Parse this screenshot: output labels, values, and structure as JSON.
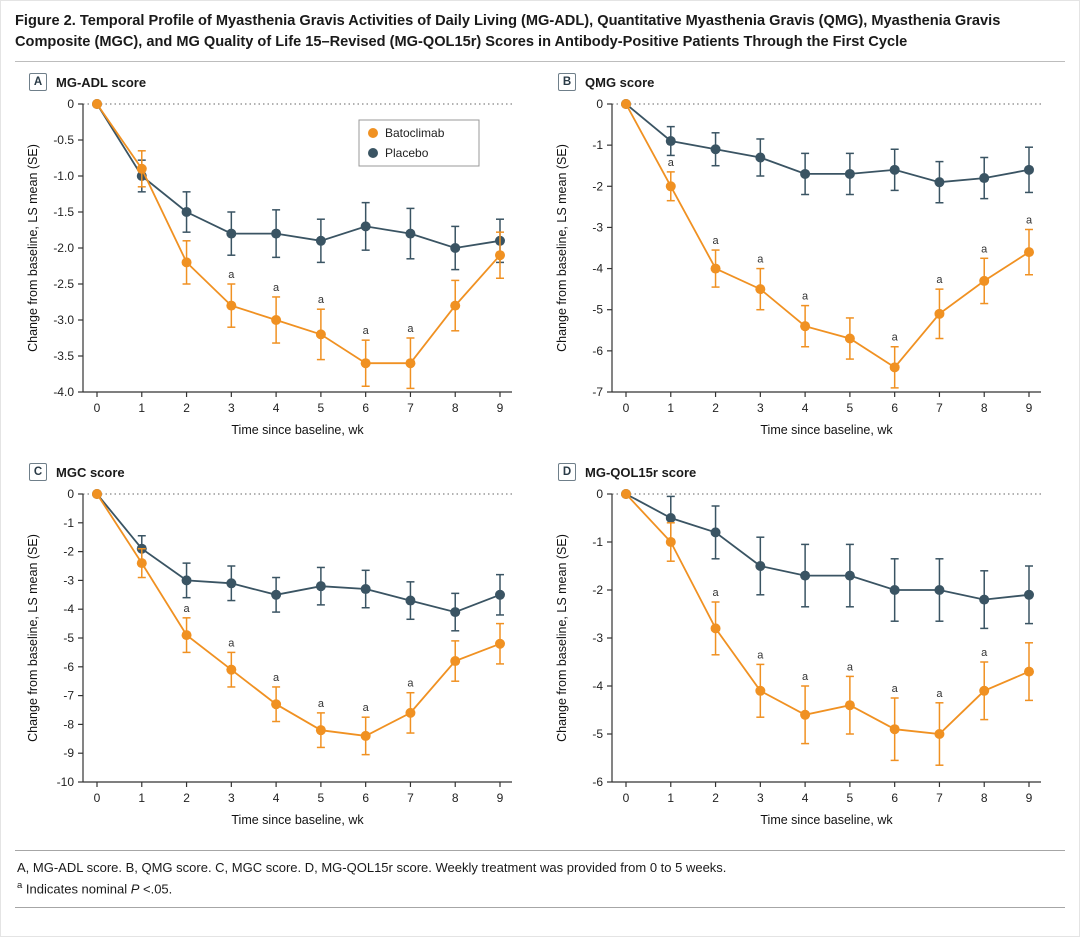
{
  "figure": {
    "title": "Figure 2. Temporal Profile of Myasthenia Gravis Activities of Daily Living (MG-ADL), Quantitative Myasthenia Gravis (QMG), Myasthenia Gravis Composite (MGC), and MG Quality of Life 15–Revised (MG-QOL15r) Scores in Antibody-Positive Patients Through the First Cycle",
    "footnote_main": "A, MG-ADL score. B, QMG score. C, MGC score. D, MG-QOL15r score. Weekly treatment was provided from 0 to 5 weeks.",
    "footnote_marker": "a",
    "footnote_sig_pre": " Indicates nominal ",
    "footnote_sig_italic": "P",
    "footnote_sig_post": " <.05."
  },
  "colors": {
    "batoclimab": "#F09122",
    "placebo": "#3A5463",
    "axis": "#333333",
    "zero_line": "#666666"
  },
  "chart_data": [
    {
      "type": "line",
      "panel_label": "A",
      "panel_title": "MG-ADL score",
      "xlabel": "Time since baseline, wk",
      "ylabel": "Change from baseline, LS mean (SE)",
      "x": [
        0,
        1,
        2,
        3,
        4,
        5,
        6,
        7,
        8,
        9
      ],
      "ylim": [
        -4.0,
        0
      ],
      "ytick_step": 0.5,
      "ytick_decimals": 1,
      "zero_line_dotted": true,
      "legend": true,
      "sig_marker": "a",
      "series": [
        {
          "name": "Batoclimab",
          "color": "#F09122",
          "values": [
            0,
            -0.9,
            -2.2,
            -2.8,
            -3.0,
            -3.2,
            -3.6,
            -3.6,
            -2.8,
            -2.1
          ],
          "se": [
            0,
            0.25,
            0.3,
            0.3,
            0.32,
            0.35,
            0.32,
            0.35,
            0.35,
            0.32
          ],
          "sig_x": [
            3,
            4,
            5,
            6,
            7
          ]
        },
        {
          "name": "Placebo",
          "color": "#3A5463",
          "values": [
            0,
            -1.0,
            -1.5,
            -1.8,
            -1.8,
            -1.9,
            -1.7,
            -1.8,
            -2.0,
            -1.9
          ],
          "se": [
            0,
            0.22,
            0.28,
            0.3,
            0.33,
            0.3,
            0.33,
            0.35,
            0.3,
            0.3
          ],
          "sig_x": []
        }
      ]
    },
    {
      "type": "line",
      "panel_label": "B",
      "panel_title": "QMG score",
      "xlabel": "Time since baseline, wk",
      "ylabel": "Change from baseline, LS mean (SE)",
      "x": [
        0,
        1,
        2,
        3,
        4,
        5,
        6,
        7,
        8,
        9
      ],
      "ylim": [
        -7,
        0
      ],
      "ytick_step": 1,
      "ytick_decimals": 0,
      "zero_line_dotted": true,
      "legend": false,
      "sig_marker": "a",
      "series": [
        {
          "name": "Batoclimab",
          "color": "#F09122",
          "values": [
            0,
            -2.0,
            -4.0,
            -4.5,
            -5.4,
            -5.7,
            -6.4,
            -5.1,
            -4.3,
            -3.6
          ],
          "se": [
            0,
            0.35,
            0.45,
            0.5,
            0.5,
            0.5,
            0.5,
            0.6,
            0.55,
            0.55
          ],
          "sig_x": [
            1,
            2,
            3,
            4,
            6,
            7,
            8,
            9
          ]
        },
        {
          "name": "Placebo",
          "color": "#3A5463",
          "values": [
            0,
            -0.9,
            -1.1,
            -1.3,
            -1.7,
            -1.7,
            -1.6,
            -1.9,
            -1.8,
            -1.6
          ],
          "se": [
            0,
            0.35,
            0.4,
            0.45,
            0.5,
            0.5,
            0.5,
            0.5,
            0.5,
            0.55
          ],
          "sig_x": []
        }
      ]
    },
    {
      "type": "line",
      "panel_label": "C",
      "panel_title": "MGC score",
      "xlabel": "Time since baseline, wk",
      "ylabel": "Change from baseline, LS mean (SE)",
      "x": [
        0,
        1,
        2,
        3,
        4,
        5,
        6,
        7,
        8,
        9
      ],
      "ylim": [
        -10,
        0
      ],
      "ytick_step": 1,
      "ytick_decimals": 0,
      "zero_line_dotted": true,
      "legend": false,
      "sig_marker": "a",
      "series": [
        {
          "name": "Batoclimab",
          "color": "#F09122",
          "values": [
            0,
            -2.4,
            -4.9,
            -6.1,
            -7.3,
            -8.2,
            -8.4,
            -7.6,
            -5.8,
            -5.2
          ],
          "se": [
            0,
            0.5,
            0.6,
            0.6,
            0.6,
            0.6,
            0.65,
            0.7,
            0.7,
            0.7
          ],
          "sig_x": [
            2,
            3,
            4,
            5,
            6,
            7
          ]
        },
        {
          "name": "Placebo",
          "color": "#3A5463",
          "values": [
            0,
            -1.9,
            -3.0,
            -3.1,
            -3.5,
            -3.2,
            -3.3,
            -3.7,
            -4.1,
            -3.5
          ],
          "se": [
            0,
            0.45,
            0.6,
            0.6,
            0.6,
            0.65,
            0.65,
            0.65,
            0.65,
            0.7
          ],
          "sig_x": []
        }
      ]
    },
    {
      "type": "line",
      "panel_label": "D",
      "panel_title": "MG-QOL15r score",
      "xlabel": "Time since baseline, wk",
      "ylabel": "Change from baseline, LS mean (SE)",
      "x": [
        0,
        1,
        2,
        3,
        4,
        5,
        6,
        7,
        8,
        9
      ],
      "ylim": [
        -6,
        0
      ],
      "ytick_step": 1,
      "ytick_decimals": 0,
      "zero_line_dotted": true,
      "legend": false,
      "sig_marker": "a",
      "series": [
        {
          "name": "Batoclimab",
          "color": "#F09122",
          "values": [
            0,
            -1.0,
            -2.8,
            -4.1,
            -4.6,
            -4.4,
            -4.9,
            -5.0,
            -4.1,
            -3.7
          ],
          "se": [
            0,
            0.4,
            0.55,
            0.55,
            0.6,
            0.6,
            0.65,
            0.65,
            0.6,
            0.6
          ],
          "sig_x": [
            2,
            3,
            4,
            5,
            6,
            7,
            8
          ]
        },
        {
          "name": "Placebo",
          "color": "#3A5463",
          "values": [
            0,
            -0.5,
            -0.8,
            -1.5,
            -1.7,
            -1.7,
            -2.0,
            -2.0,
            -2.2,
            -2.1
          ],
          "se": [
            0,
            0.45,
            0.55,
            0.6,
            0.65,
            0.65,
            0.65,
            0.65,
            0.6,
            0.6
          ],
          "sig_x": []
        }
      ]
    }
  ]
}
